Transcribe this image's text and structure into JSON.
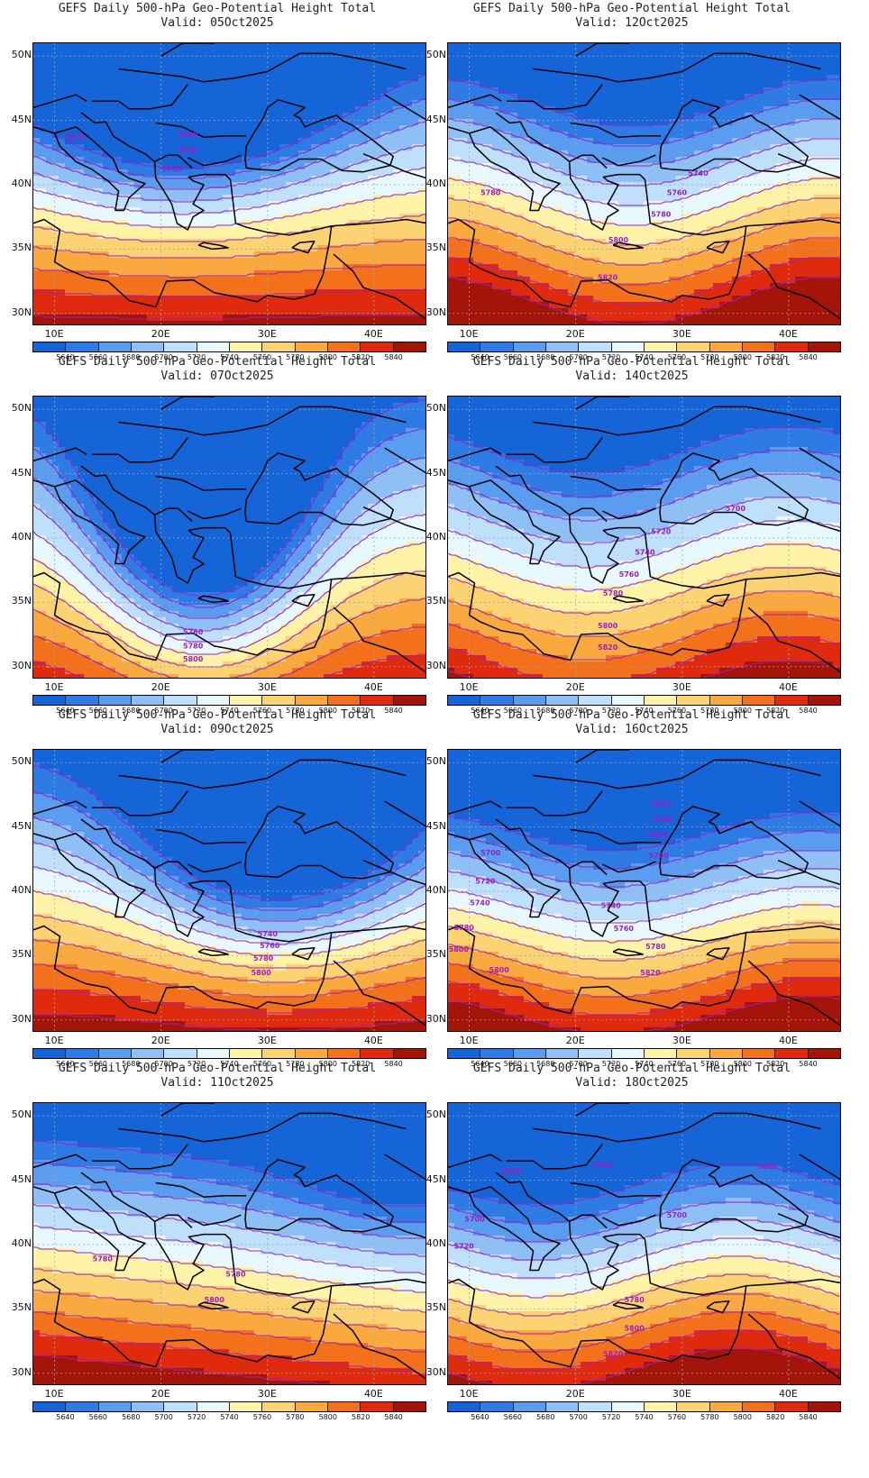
{
  "figure": {
    "title": "GEFS Daily 500-hPa Geo-Potential Height Total"
  },
  "panels": [
    {
      "title": "GEFS Daily 500-hPa Geo-Potential Height Total",
      "valid": "Valid: 05Oct2025"
    },
    {
      "title": "GEFS Daily 500-hPa Geo-Potential Height Total",
      "valid": "Valid: 12Oct2025"
    },
    {
      "title": "GEFS Daily 500-hPa Geo-Potential Height Total",
      "valid": "Valid: 07Oct2025"
    },
    {
      "title": "GEFS Daily 500-hPa Geo-Potential Height Total",
      "valid": "Valid: 14Oct2025"
    },
    {
      "title": "GEFS Daily 500-hPa Geo-Potential Height Total",
      "valid": "Valid: 09Oct2025"
    },
    {
      "title": "GEFS Daily 500-hPa Geo-Potential Height Total",
      "valid": "Valid: 16Oct2025"
    },
    {
      "title": "GEFS Daily 500-hPa Geo-Potential Height Total",
      "valid": "Valid: 11Oct2025"
    },
    {
      "title": "GEFS Daily 500-hPa Geo-Potential Height Total",
      "valid": "Valid: 18Oct2025"
    }
  ],
  "axes": {
    "lat_labels": [
      "50N",
      "45N",
      "40N",
      "35N",
      "30N"
    ],
    "lon_labels": [
      "10E",
      "20E",
      "30E",
      "40E"
    ]
  },
  "colorbar": {
    "labels": [
      "5640",
      "5660",
      "5680",
      "5700",
      "5720",
      "5740",
      "5760",
      "5780",
      "5800",
      "5820",
      "5840"
    ],
    "colors": [
      "#1565d8",
      "#2f7be6",
      "#5a9cef",
      "#8fc0f5",
      "#bfe0fb",
      "#e8f8ff",
      "#fff3a8",
      "#fcd373",
      "#f9a93d",
      "#f4711c",
      "#df2a0e",
      "#a51408"
    ]
  },
  "contour_line_color": "#9b1fc4",
  "chart_data": [
    {
      "type": "heatmap",
      "panel": 1,
      "valid": "05Oct2025",
      "contour_labels": [
        "5640",
        "5660",
        "5680",
        "5700"
      ]
    },
    {
      "type": "heatmap",
      "panel": 2,
      "valid": "12Oct2025",
      "contour_labels": [
        "5740",
        "5760",
        "5780",
        "5780",
        "5800",
        "5820"
      ]
    },
    {
      "type": "heatmap",
      "panel": 3,
      "valid": "07Oct2025",
      "contour_labels": [
        "5760",
        "5780",
        "5800"
      ]
    },
    {
      "type": "heatmap",
      "panel": 4,
      "valid": "14Oct2025",
      "contour_labels": [
        "5700",
        "5720",
        "5740",
        "5760",
        "5780",
        "5800",
        "5820"
      ]
    },
    {
      "type": "heatmap",
      "panel": 5,
      "valid": "09Oct2025",
      "contour_labels": [
        "5740",
        "5760",
        "5780",
        "5800"
      ]
    },
    {
      "type": "heatmap",
      "panel": 6,
      "valid": "16Oct2025",
      "contour_labels": [
        "5660",
        "5680",
        "5680",
        "5700",
        "5700",
        "5720",
        "5740",
        "5740",
        "5760",
        "5780",
        "5780",
        "5800",
        "5800",
        "5820"
      ]
    },
    {
      "type": "heatmap",
      "panel": 7,
      "valid": "11Oct2025",
      "contour_labels": [
        "5780",
        "5780",
        "5800"
      ]
    },
    {
      "type": "heatmap",
      "panel": 8,
      "valid": "18Oct2025",
      "contour_labels": [
        "5660",
        "5680",
        "5660",
        "5700",
        "5700",
        "5720",
        "5780",
        "5800",
        "5820"
      ]
    }
  ]
}
